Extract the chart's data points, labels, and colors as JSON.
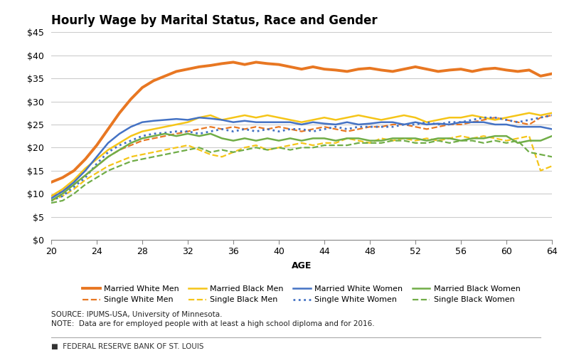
{
  "title": "Hourly Wage by Marital Status, Race and Gender",
  "xlabel": "AGE",
  "xlim": [
    20,
    64
  ],
  "ylim": [
    0,
    45
  ],
  "yticks": [
    0,
    5,
    10,
    15,
    20,
    25,
    30,
    35,
    40,
    45
  ],
  "xticks": [
    20,
    24,
    28,
    32,
    36,
    40,
    44,
    48,
    52,
    56,
    60,
    64
  ],
  "source_text": "SOURCE: IPUMS-USA, University of Minnesota.",
  "note_text": "NOTE:  Data are for employed people with at least a high school diploma and for 2016.",
  "fed_text": "FEDERAL RESERVE BANK OF ST. LOUIS",
  "grid_color": "#cccccc",
  "series": {
    "married_white_men": {
      "label": "Married White Men",
      "color": "#E87722",
      "linestyle": "solid",
      "linewidth": 2.8,
      "values": [
        12.5,
        13.5,
        15.0,
        17.5,
        20.5,
        24.0,
        27.5,
        30.5,
        33.0,
        34.5,
        35.5,
        36.5,
        37.0,
        37.5,
        37.8,
        38.2,
        38.5,
        38.0,
        38.5,
        38.2,
        38.0,
        37.5,
        37.0,
        37.5,
        37.0,
        36.8,
        36.5,
        37.0,
        37.2,
        36.8,
        36.5,
        37.0,
        37.5,
        37.0,
        36.5,
        36.8,
        37.0,
        36.5,
        37.0,
        37.2,
        36.8,
        36.5,
        36.8,
        35.5,
        36.0
      ]
    },
    "single_white_men": {
      "label": "Single White Men",
      "color": "#E87722",
      "linestyle": "dashed",
      "linewidth": 1.6,
      "values": [
        9.5,
        10.5,
        12.0,
        14.0,
        16.0,
        18.0,
        19.5,
        20.5,
        21.5,
        22.0,
        22.5,
        23.0,
        23.5,
        24.0,
        24.5,
        24.0,
        24.5,
        24.0,
        24.5,
        24.0,
        24.5,
        24.0,
        23.5,
        24.0,
        24.5,
        24.0,
        23.5,
        24.0,
        24.5,
        24.5,
        25.0,
        25.0,
        24.5,
        24.0,
        24.5,
        25.0,
        25.0,
        25.5,
        26.0,
        26.5,
        26.0,
        25.5,
        25.0,
        26.5,
        27.0
      ]
    },
    "married_black_men": {
      "label": "Married Black Men",
      "color": "#F5C518",
      "linestyle": "solid",
      "linewidth": 1.8,
      "values": [
        9.5,
        11.0,
        13.0,
        15.5,
        17.5,
        19.5,
        21.0,
        22.5,
        23.5,
        24.0,
        24.5,
        25.0,
        25.5,
        26.5,
        27.0,
        26.0,
        26.5,
        27.0,
        26.5,
        27.0,
        26.5,
        26.0,
        25.5,
        26.0,
        26.5,
        26.0,
        26.5,
        27.0,
        26.5,
        26.0,
        26.5,
        27.0,
        26.5,
        25.5,
        26.0,
        26.5,
        26.5,
        27.0,
        26.5,
        26.0,
        26.5,
        27.0,
        27.5,
        27.0,
        27.5
      ]
    },
    "single_black_men": {
      "label": "Single Black Men",
      "color": "#F5C518",
      "linestyle": "dashed",
      "linewidth": 1.6,
      "values": [
        8.5,
        9.5,
        11.0,
        13.0,
        14.5,
        16.0,
        17.0,
        18.0,
        18.5,
        19.0,
        19.5,
        20.0,
        20.5,
        19.5,
        18.5,
        18.0,
        19.0,
        20.0,
        20.5,
        19.5,
        20.0,
        20.5,
        21.0,
        20.5,
        21.0,
        21.0,
        22.0,
        21.5,
        21.0,
        22.0,
        21.5,
        22.0,
        21.5,
        22.0,
        21.5,
        22.0,
        22.5,
        22.0,
        22.5,
        22.0,
        21.5,
        22.0,
        22.5,
        15.0,
        16.0
      ]
    },
    "married_white_women": {
      "label": "Married White Women",
      "color": "#4472C4",
      "linestyle": "solid",
      "linewidth": 1.8,
      "values": [
        9.0,
        10.5,
        12.5,
        15.0,
        18.0,
        21.0,
        23.0,
        24.5,
        25.5,
        25.8,
        26.0,
        26.2,
        26.0,
        26.5,
        26.3,
        26.0,
        25.5,
        25.8,
        25.5,
        25.5,
        25.5,
        25.5,
        25.0,
        25.5,
        25.2,
        25.0,
        25.5,
        25.0,
        25.2,
        25.5,
        25.5,
        25.0,
        25.5,
        25.0,
        25.2,
        25.0,
        25.5,
        25.5,
        25.5,
        25.0,
        25.0,
        24.5,
        24.5,
        24.5,
        24.0
      ]
    },
    "single_white_women": {
      "label": "Single White Women",
      "color": "#4472C4",
      "linestyle": "dotted",
      "linewidth": 2.0,
      "values": [
        8.5,
        9.5,
        11.5,
        13.5,
        16.5,
        19.0,
        20.5,
        21.5,
        22.5,
        23.0,
        23.2,
        23.5,
        23.5,
        23.0,
        23.5,
        24.0,
        23.5,
        24.0,
        23.5,
        24.0,
        23.5,
        24.0,
        24.0,
        23.5,
        24.0,
        24.5,
        24.0,
        24.5,
        24.5,
        24.5,
        24.5,
        25.0,
        25.0,
        25.5,
        25.0,
        25.5,
        25.5,
        26.0,
        26.5,
        26.5,
        26.0,
        25.5,
        26.0,
        26.5,
        27.0
      ]
    },
    "married_black_women": {
      "label": "Married Black Women",
      "color": "#70AD47",
      "linestyle": "solid",
      "linewidth": 1.8,
      "values": [
        8.5,
        10.0,
        12.0,
        14.0,
        16.0,
        18.0,
        19.5,
        21.0,
        22.0,
        22.5,
        23.0,
        22.5,
        23.0,
        22.5,
        23.0,
        22.0,
        21.5,
        22.0,
        21.5,
        22.0,
        21.5,
        22.0,
        21.5,
        22.0,
        22.0,
        21.5,
        22.0,
        22.0,
        21.5,
        21.5,
        22.0,
        22.0,
        22.0,
        21.5,
        22.0,
        22.0,
        21.5,
        22.0,
        22.0,
        22.5,
        22.5,
        21.0,
        21.5,
        21.5,
        22.5
      ]
    },
    "single_black_women": {
      "label": "Single Black Women",
      "color": "#70AD47",
      "linestyle": "dashed",
      "linewidth": 1.6,
      "values": [
        8.0,
        8.5,
        10.0,
        12.0,
        13.5,
        15.0,
        16.0,
        17.0,
        17.5,
        18.0,
        18.5,
        19.0,
        19.5,
        20.0,
        19.0,
        19.5,
        19.0,
        19.5,
        20.0,
        19.5,
        20.0,
        19.5,
        20.0,
        20.0,
        20.5,
        20.5,
        20.5,
        21.0,
        21.0,
        21.0,
        21.5,
        21.5,
        21.0,
        21.0,
        21.5,
        21.0,
        21.5,
        21.5,
        21.0,
        21.5,
        21.0,
        21.5,
        19.0,
        18.5,
        18.0
      ]
    }
  },
  "legend_order": [
    [
      "married_white_men",
      "single_white_men",
      "married_black_men",
      "single_black_men"
    ],
    [
      "married_white_women",
      "single_white_women",
      "married_black_women",
      "single_black_women"
    ]
  ]
}
